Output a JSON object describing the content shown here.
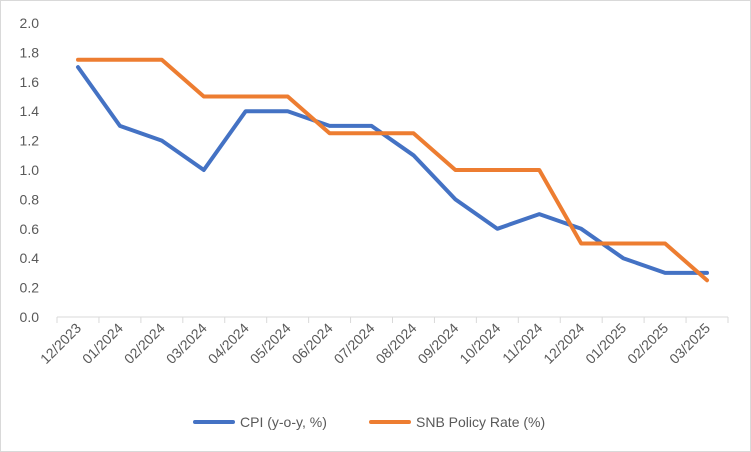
{
  "chart_data": {
    "type": "line",
    "title": "",
    "xlabel": "",
    "ylabel": "",
    "categories": [
      "12/2023",
      "01/2024",
      "02/2024",
      "03/2024",
      "04/2024",
      "05/2024",
      "06/2024",
      "07/2024",
      "08/2024",
      "09/2024",
      "10/2024",
      "11/2024",
      "12/2024",
      "01/2025",
      "02/2025",
      "03/2025"
    ],
    "ylim": [
      0,
      2.0
    ],
    "yticks": [
      "0.0",
      "0.2",
      "0.4",
      "0.6",
      "0.8",
      "1.0",
      "1.2",
      "1.4",
      "1.6",
      "1.8",
      "2.0"
    ],
    "grid": false,
    "legend_position": "bottom",
    "series": [
      {
        "name": "CPI (y-o-y, %)",
        "color": "#4472C4",
        "values": [
          1.7,
          1.3,
          1.2,
          1.0,
          1.4,
          1.4,
          1.3,
          1.3,
          1.1,
          0.8,
          0.6,
          0.7,
          0.6,
          0.4,
          0.3,
          0.3
        ]
      },
      {
        "name": "SNB Policy Rate (%)",
        "color": "#ED7D31",
        "values": [
          1.75,
          1.75,
          1.75,
          1.5,
          1.5,
          1.5,
          1.25,
          1.25,
          1.25,
          1.0,
          1.0,
          1.0,
          0.5,
          0.5,
          0.5,
          0.25
        ]
      }
    ]
  }
}
